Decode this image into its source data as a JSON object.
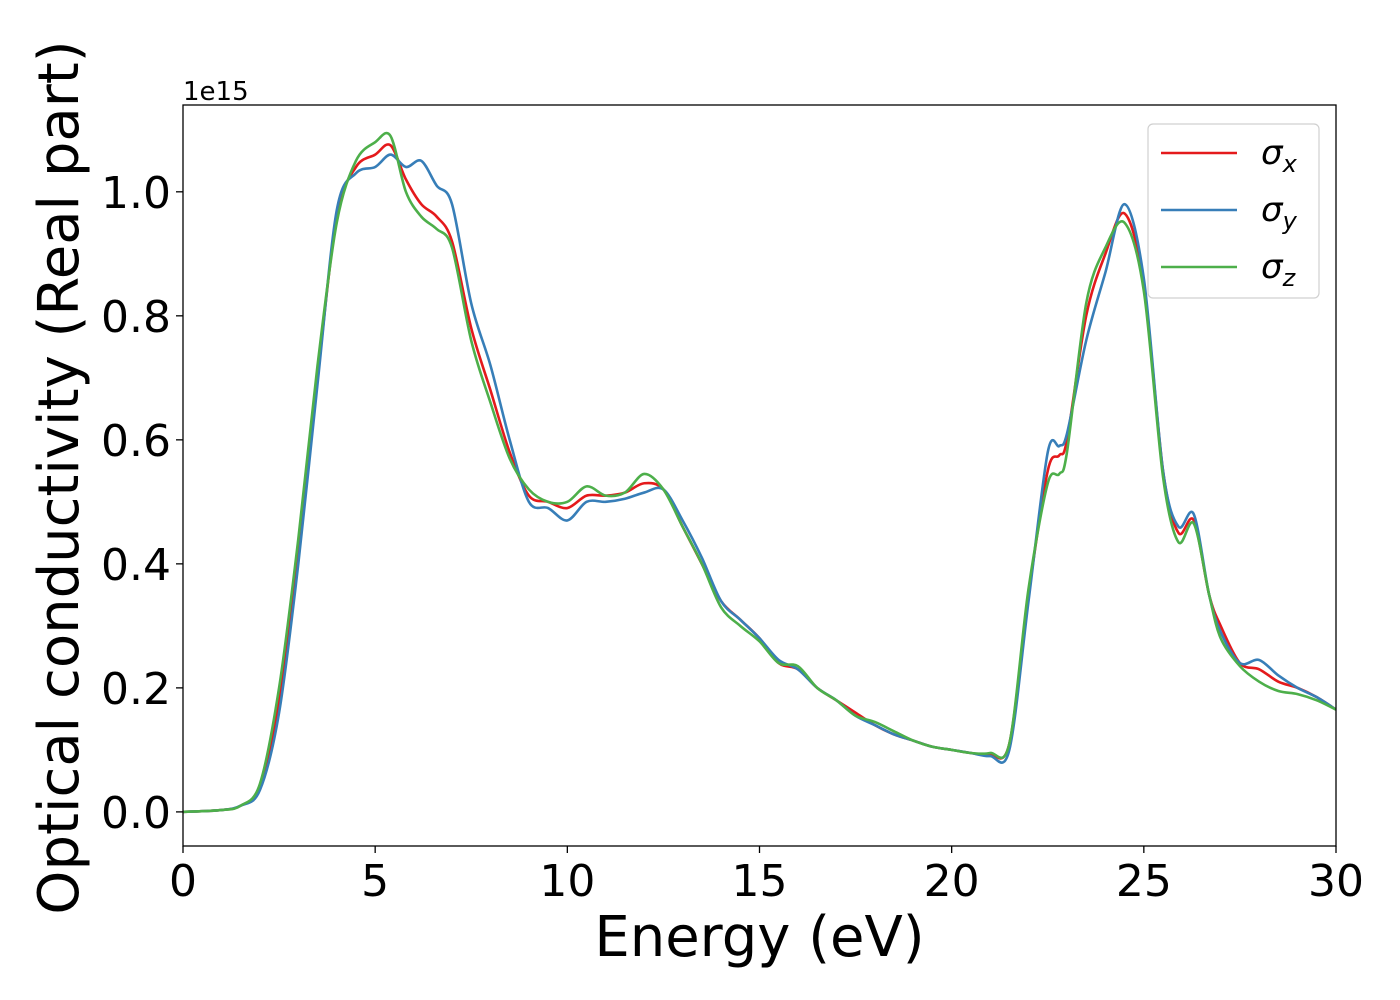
{
  "chart_data": {
    "type": "line",
    "xlabel": "Energy (eV)",
    "ylabel": "Optical conductivity (Real part)",
    "y_offset_text": "1e15",
    "xlim": [
      0,
      30
    ],
    "ylim": [
      -0.055,
      1.14
    ],
    "x_ticks": [
      0,
      5,
      10,
      15,
      20,
      25,
      30
    ],
    "x_tick_labels": [
      "0",
      "5",
      "10",
      "15",
      "20",
      "25",
      "30"
    ],
    "y_ticks": [
      0.0,
      0.2,
      0.4,
      0.6,
      0.8,
      1.0
    ],
    "y_tick_labels": [
      "0.0",
      "0.2",
      "0.4",
      "0.6",
      "0.8",
      "1.0"
    ],
    "grid": false,
    "legend_position": "top-right",
    "series": [
      {
        "name": "σx",
        "symbol": "σ",
        "subscript": "x",
        "color": "#e41a1c",
        "x": [
          0,
          1,
          1.5,
          2,
          2.5,
          3,
          3.5,
          4,
          4.5,
          5,
          5.4,
          5.8,
          6.2,
          6.6,
          7,
          7.5,
          8,
          8.5,
          9,
          9.5,
          10,
          10.5,
          11,
          11.5,
          12,
          12.5,
          13,
          13.5,
          14,
          14.5,
          15,
          15.5,
          16,
          16.5,
          17,
          17.5,
          18,
          18.5,
          19,
          19.5,
          20,
          20.5,
          21,
          21.5,
          22,
          22.5,
          22.8,
          23,
          23.5,
          24,
          24.5,
          25,
          25.5,
          25.9,
          26.3,
          26.7,
          27,
          27.5,
          28,
          28.5,
          29,
          29.5,
          30
        ],
        "values": [
          0.0,
          0.003,
          0.01,
          0.04,
          0.18,
          0.42,
          0.7,
          0.96,
          1.04,
          1.06,
          1.075,
          1.02,
          0.98,
          0.96,
          0.92,
          0.78,
          0.68,
          0.58,
          0.51,
          0.5,
          0.49,
          0.51,
          0.51,
          0.515,
          0.53,
          0.52,
          0.46,
          0.4,
          0.34,
          0.31,
          0.28,
          0.24,
          0.23,
          0.2,
          0.18,
          0.16,
          0.14,
          0.125,
          0.115,
          0.105,
          0.1,
          0.095,
          0.092,
          0.11,
          0.35,
          0.55,
          0.575,
          0.6,
          0.8,
          0.9,
          0.965,
          0.85,
          0.55,
          0.45,
          0.47,
          0.35,
          0.3,
          0.24,
          0.23,
          0.21,
          0.2,
          0.185,
          0.165
        ]
      },
      {
        "name": "σy",
        "symbol": "σ",
        "subscript": "y",
        "color": "#377eb8",
        "x": [
          0,
          1,
          1.5,
          2,
          2.5,
          3,
          3.5,
          4,
          4.5,
          5,
          5.4,
          5.8,
          6.2,
          6.6,
          7,
          7.5,
          8,
          8.5,
          9,
          9.5,
          10,
          10.5,
          11,
          11.5,
          12,
          12.5,
          13,
          13.5,
          14,
          14.5,
          15,
          15.5,
          16,
          16.5,
          17,
          17.5,
          18,
          18.5,
          19,
          19.5,
          20,
          20.5,
          21,
          21.5,
          22,
          22.5,
          22.8,
          23,
          23.5,
          24,
          24.5,
          25,
          25.5,
          25.9,
          26.3,
          26.7,
          27,
          27.5,
          28,
          28.5,
          29,
          29.5,
          30
        ],
        "values": [
          0.0,
          0.003,
          0.01,
          0.035,
          0.16,
          0.4,
          0.69,
          0.97,
          1.03,
          1.04,
          1.06,
          1.04,
          1.05,
          1.01,
          0.98,
          0.82,
          0.72,
          0.6,
          0.5,
          0.49,
          0.47,
          0.5,
          0.5,
          0.505,
          0.515,
          0.52,
          0.47,
          0.41,
          0.34,
          0.31,
          0.28,
          0.245,
          0.23,
          0.2,
          0.18,
          0.155,
          0.14,
          0.125,
          0.115,
          0.105,
          0.1,
          0.095,
          0.09,
          0.1,
          0.34,
          0.58,
          0.59,
          0.61,
          0.76,
          0.87,
          0.98,
          0.86,
          0.55,
          0.46,
          0.48,
          0.35,
          0.29,
          0.24,
          0.245,
          0.22,
          0.2,
          0.185,
          0.165
        ]
      },
      {
        "name": "σz",
        "symbol": "σ",
        "subscript": "z",
        "color": "#4daf4a",
        "x": [
          0,
          1,
          1.5,
          2,
          2.5,
          3,
          3.5,
          4,
          4.5,
          5,
          5.4,
          5.8,
          6.2,
          6.6,
          7,
          7.5,
          8,
          8.5,
          9,
          9.5,
          10,
          10.5,
          11,
          11.5,
          12,
          12.5,
          13,
          13.5,
          14,
          14.5,
          15,
          15.5,
          16,
          16.5,
          17,
          17.5,
          18,
          18.5,
          19,
          19.5,
          20,
          20.5,
          21,
          21.5,
          22,
          22.5,
          22.8,
          23,
          23.5,
          24,
          24.5,
          25,
          25.5,
          25.9,
          26.3,
          26.7,
          27,
          27.5,
          28,
          28.5,
          29,
          29.5,
          30
        ],
        "values": [
          0.0,
          0.003,
          0.01,
          0.045,
          0.2,
          0.44,
          0.72,
          0.95,
          1.05,
          1.08,
          1.09,
          1.0,
          0.96,
          0.94,
          0.91,
          0.76,
          0.66,
          0.57,
          0.52,
          0.5,
          0.5,
          0.525,
          0.51,
          0.515,
          0.545,
          0.52,
          0.46,
          0.4,
          0.33,
          0.3,
          0.275,
          0.24,
          0.235,
          0.2,
          0.18,
          0.155,
          0.145,
          0.13,
          0.115,
          0.105,
          0.1,
          0.095,
          0.095,
          0.11,
          0.36,
          0.53,
          0.545,
          0.58,
          0.82,
          0.91,
          0.95,
          0.84,
          0.54,
          0.435,
          0.465,
          0.35,
          0.28,
          0.235,
          0.21,
          0.195,
          0.19,
          0.18,
          0.165
        ]
      }
    ]
  }
}
